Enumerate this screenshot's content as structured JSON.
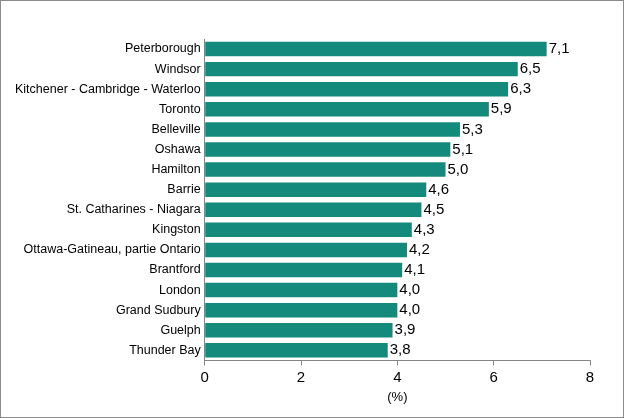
{
  "chart_data": {
    "type": "bar",
    "orientation": "horizontal",
    "categories": [
      "Peterborough",
      "Windsor",
      "Kitchener - Cambridge - Waterloo",
      "Toronto",
      "Belleville",
      "Oshawa",
      "Hamilton",
      "Barrie",
      "St. Catharines - Niagara",
      "Kingston",
      "Ottawa-Gatineau, partie Ontario",
      "Brantford",
      "London",
      "Grand Sudbury",
      "Guelph",
      "Thunder Bay"
    ],
    "values": [
      7.1,
      6.5,
      6.3,
      5.9,
      5.3,
      5.1,
      5.0,
      4.6,
      4.5,
      4.3,
      4.2,
      4.1,
      4.0,
      4.0,
      3.9,
      3.8
    ],
    "value_labels": [
      "7,1",
      "6,5",
      "6,3",
      "5,9",
      "5,3",
      "5,1",
      "5,0",
      "4,6",
      "4,5",
      "4,3",
      "4,2",
      "4,1",
      "4,0",
      "4,0",
      "3,9",
      "3,8"
    ],
    "color": "#138a7b",
    "xlabel": "(%)",
    "xlim": [
      0,
      8
    ],
    "xticks": [
      0,
      2,
      4,
      6,
      8
    ],
    "grid": false,
    "data_labels": true
  }
}
